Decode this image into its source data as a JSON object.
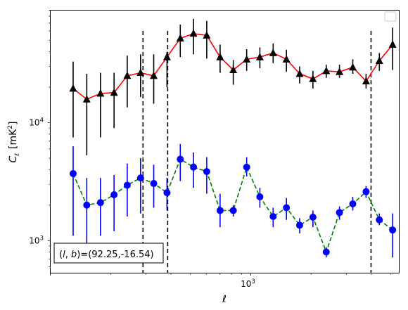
{
  "chart_data": {
    "type": "scatter",
    "xlabel": "ℓ",
    "ylabel": "C_ℓ [mK²]",
    "xscale": "log",
    "yscale": "log",
    "xlim": [
      100,
      5500
    ],
    "ylim": [
      530,
      90000
    ],
    "x_tick_labels": [
      {
        "value": 1000,
        "base": "10",
        "exp": "3"
      }
    ],
    "y_tick_labels": [
      {
        "value": 1000,
        "base": "10",
        "exp": "3"
      },
      {
        "value": 10000,
        "base": "10",
        "exp": "4"
      }
    ],
    "grid": false,
    "legend": {
      "placement": "top-right",
      "entries": []
    },
    "annotation": "(l, b)=(92.25,-16.54)",
    "annotation_parts": {
      "prefix": "(",
      "l": "l",
      "sep": ", ",
      "b": "b",
      "suffix": ")=(92.25,-16.54)"
    },
    "vlines": [
      290,
      385,
      3980
    ],
    "series": [
      {
        "color": "#000000",
        "line_color": "#ff0000",
        "line_style": "solid",
        "marker": "triangle",
        "x": [
          130,
          152,
          178,
          208,
          242,
          282,
          328,
          382,
          445,
          518,
          603,
          703,
          818,
          954,
          1110,
          1293,
          1506,
          1753,
          2042,
          2379,
          2770,
          3227,
          3759,
          4378,
          5100
        ],
        "y": [
          19500,
          15800,
          17700,
          18000,
          25000,
          26500,
          25000,
          36000,
          52000,
          57000,
          55000,
          36000,
          28000,
          34500,
          36000,
          39000,
          34500,
          26000,
          23500,
          27500,
          27000,
          29500,
          22500,
          33500,
          46000
        ],
        "yerr_low": [
          7500,
          5300,
          7500,
          9000,
          13500,
          16500,
          14500,
          20000,
          36000,
          38000,
          35000,
          26500,
          21000,
          27500,
          29000,
          32000,
          27000,
          21500,
          19500,
          24000,
          24000,
          26000,
          19500,
          27500,
          28000
        ],
        "yerr_high": [
          33000,
          26000,
          26500,
          26500,
          37000,
          38000,
          38000,
          40000,
          68000,
          76000,
          73000,
          46000,
          34000,
          42000,
          43500,
          47000,
          41500,
          30000,
          27500,
          31000,
          31000,
          34500,
          26000,
          39000,
          64000
        ]
      },
      {
        "color": "#0000ff",
        "line_color": "#008000",
        "line_style": "dashed",
        "marker": "circle",
        "x": [
          130,
          152,
          178,
          208,
          242,
          282,
          328,
          382,
          445,
          518,
          603,
          703,
          818,
          954,
          1110,
          1293,
          1506,
          1753,
          2042,
          2379,
          2770,
          3227,
          3759,
          4378,
          5100
        ],
        "y": [
          3700,
          2000,
          2100,
          2450,
          2950,
          3400,
          3050,
          2550,
          4900,
          4200,
          3850,
          1800,
          1800,
          4200,
          2350,
          1600,
          1900,
          1350,
          1580,
          800,
          1730,
          2050,
          2600,
          1500,
          1230
        ],
        "yerr_low": [
          1100,
          900,
          1100,
          1200,
          1600,
          1700,
          1900,
          1800,
          3200,
          2800,
          2500,
          1300,
          1600,
          3500,
          1900,
          1300,
          1500,
          1150,
          1300,
          720,
          1500,
          1800,
          2300,
          1350,
          720
        ],
        "yerr_high": [
          6300,
          3400,
          3400,
          3600,
          4500,
          5000,
          4400,
          3400,
          6600,
          5600,
          5100,
          2500,
          2000,
          5100,
          2800,
          1900,
          2300,
          1550,
          1800,
          880,
          1950,
          2350,
          2900,
          1700,
          1700
        ]
      }
    ]
  }
}
